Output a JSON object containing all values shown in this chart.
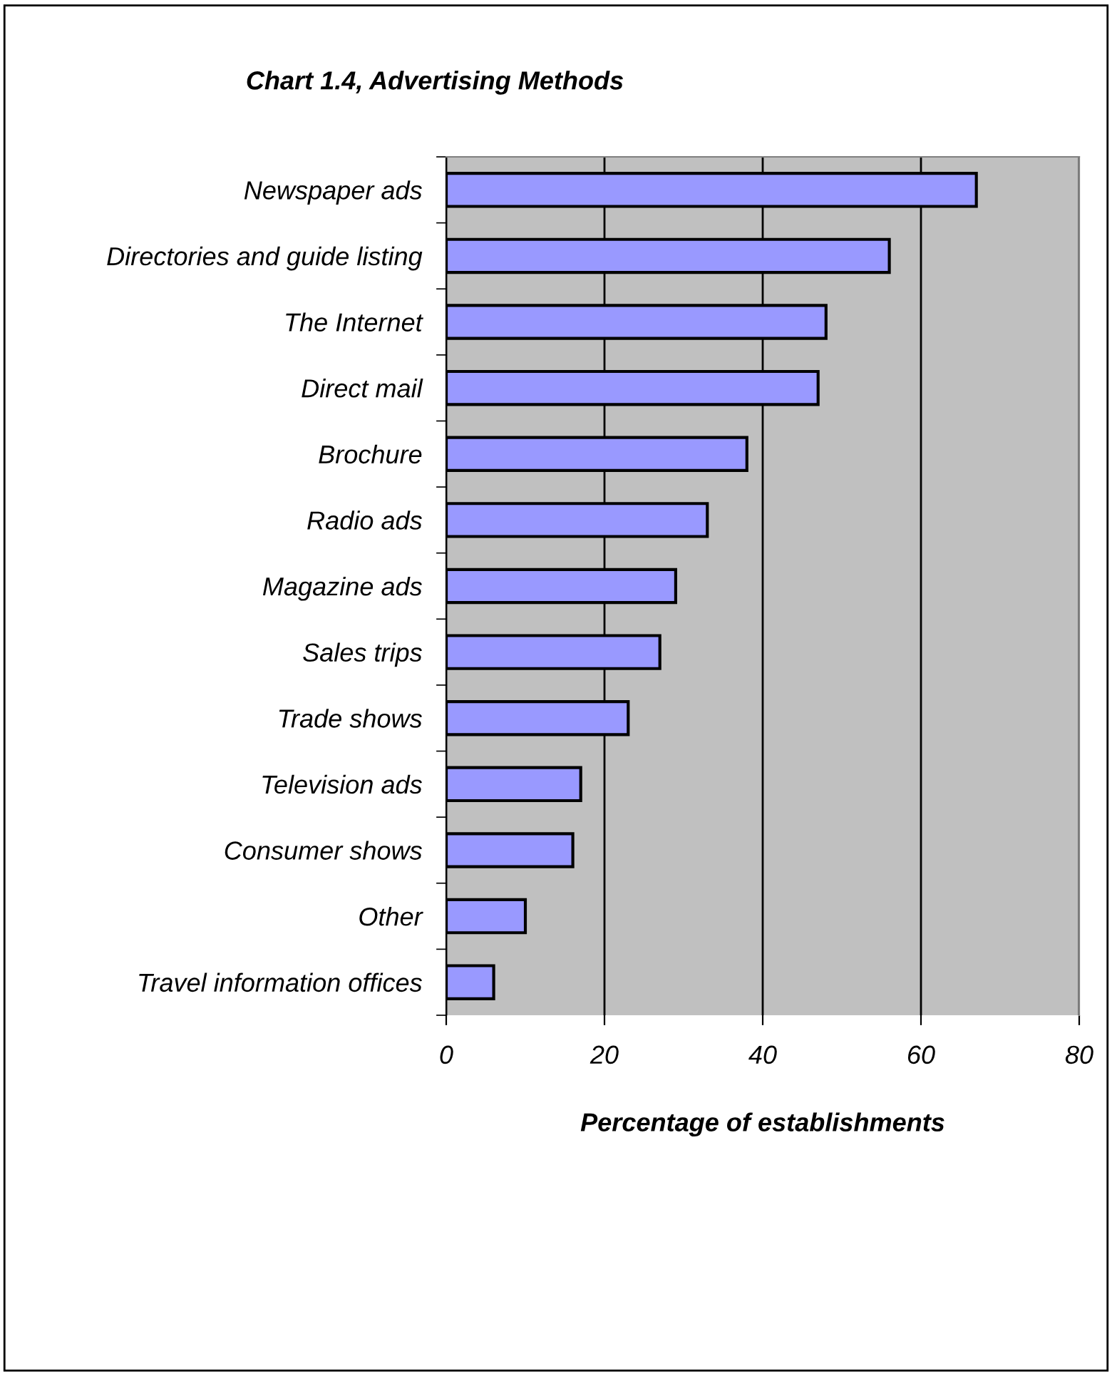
{
  "chart_data": {
    "type": "bar",
    "orientation": "horizontal",
    "title": "Chart 1.4, Advertising Methods",
    "xlabel": "Percentage of establishments",
    "categories": [
      "Newspaper ads",
      "Directories and guide listing",
      "The Internet",
      "Direct mail",
      "Brochure",
      "Radio ads",
      "Magazine ads",
      "Sales trips",
      "Trade shows",
      "Television ads",
      "Consumer shows",
      "Other",
      "Travel information offices"
    ],
    "values": [
      67,
      56,
      48,
      47,
      38,
      33,
      29,
      27,
      23,
      17,
      16,
      10,
      6
    ],
    "color": "#9999ff",
    "xlim": [
      0,
      80
    ],
    "xticks": [
      0,
      20,
      40,
      60,
      80
    ],
    "grid": "x",
    "legend": false
  }
}
